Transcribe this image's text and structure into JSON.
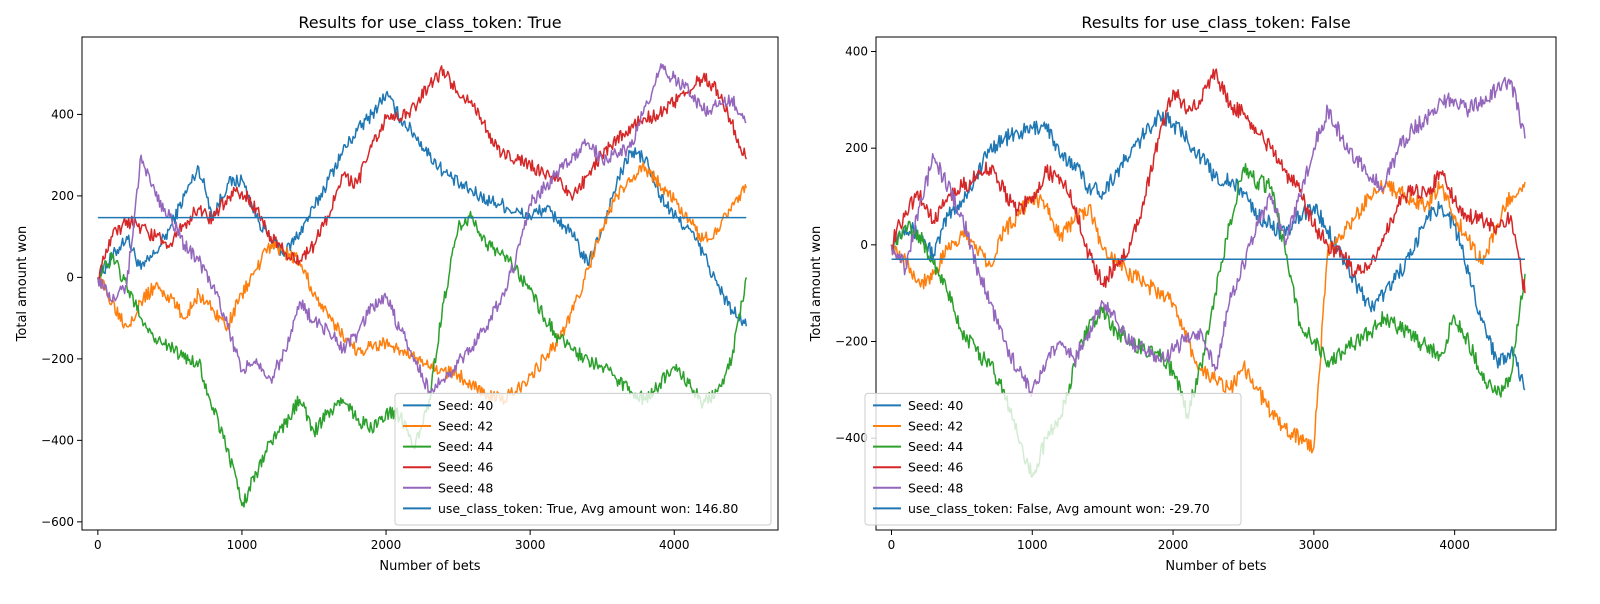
{
  "chart_data": [
    {
      "type": "line",
      "title": "Results for use_class_token: True",
      "xlabel": "Number of bets",
      "ylabel": "Total amount won",
      "xlim": [
        -110,
        4720
      ],
      "ylim": [
        -620,
        590
      ],
      "xticks": [
        0,
        1000,
        2000,
        3000,
        4000
      ],
      "yticks": [
        -600,
        -400,
        -200,
        0,
        200,
        400
      ],
      "grid": false,
      "legend_position": "lower-right",
      "series": [
        {
          "name": "Seed: 40",
          "color": "#1f77b4",
          "x": [
            0,
            100,
            200,
            300,
            400,
            500,
            600,
            700,
            800,
            900,
            1000,
            1100,
            1200,
            1300,
            1400,
            1500,
            1600,
            1700,
            1800,
            1900,
            2000,
            2100,
            2200,
            2300,
            2400,
            2500,
            2600,
            2700,
            2800,
            2900,
            3000,
            3100,
            3200,
            3300,
            3400,
            3500,
            3600,
            3700,
            3800,
            3900,
            4000,
            4100,
            4200,
            4300,
            4400,
            4500
          ],
          "y": [
            0,
            50,
            100,
            20,
            60,
            120,
            200,
            270,
            150,
            230,
            240,
            150,
            90,
            60,
            110,
            170,
            240,
            310,
            360,
            400,
            450,
            390,
            350,
            300,
            260,
            230,
            210,
            190,
            180,
            160,
            150,
            170,
            140,
            100,
            30,
            120,
            230,
            310,
            290,
            200,
            150,
            120,
            60,
            -20,
            -80,
            -120
          ]
        },
        {
          "name": "Seed: 42",
          "color": "#ff7f0e",
          "x": [
            0,
            100,
            200,
            300,
            400,
            500,
            600,
            700,
            800,
            900,
            1000,
            1100,
            1200,
            1300,
            1400,
            1500,
            1600,
            1700,
            1800,
            1900,
            2000,
            2100,
            2200,
            2300,
            2400,
            2500,
            2600,
            2700,
            2800,
            2900,
            3000,
            3100,
            3200,
            3300,
            3400,
            3500,
            3600,
            3700,
            3800,
            3900,
            4000,
            4100,
            4200,
            4300,
            4400,
            4500
          ],
          "y": [
            0,
            -60,
            -120,
            -60,
            -20,
            -50,
            -100,
            -40,
            -80,
            -120,
            -40,
            20,
            80,
            60,
            40,
            -40,
            -100,
            -140,
            -180,
            -170,
            -160,
            -180,
            -200,
            -220,
            -230,
            -240,
            -260,
            -290,
            -300,
            -280,
            -240,
            -200,
            -150,
            -80,
            20,
            120,
            200,
            240,
            270,
            230,
            190,
            140,
            90,
            120,
            180,
            220
          ]
        },
        {
          "name": "Seed: 44",
          "color": "#2ca02c",
          "x": [
            0,
            100,
            200,
            300,
            400,
            500,
            600,
            700,
            800,
            900,
            1000,
            1100,
            1200,
            1300,
            1400,
            1500,
            1600,
            1700,
            1800,
            1900,
            2000,
            2100,
            2200,
            2300,
            2400,
            2500,
            2600,
            2700,
            2800,
            2900,
            3000,
            3100,
            3200,
            3300,
            3400,
            3500,
            3600,
            3700,
            3800,
            3900,
            4000,
            4100,
            4200,
            4300,
            4400,
            4500
          ],
          "y": [
            0,
            50,
            -20,
            -100,
            -150,
            -170,
            -200,
            -210,
            -320,
            -420,
            -560,
            -480,
            -400,
            -360,
            -300,
            -380,
            -330,
            -300,
            -350,
            -370,
            -330,
            -340,
            -420,
            -300,
            -60,
            120,
            150,
            80,
            60,
            20,
            -30,
            -100,
            -150,
            -180,
            -200,
            -220,
            -250,
            -280,
            -300,
            -260,
            -220,
            -260,
            -310,
            -280,
            -200,
            0
          ]
        },
        {
          "name": "Seed: 46",
          "color": "#d62728",
          "x": [
            0,
            100,
            200,
            300,
            400,
            500,
            600,
            700,
            800,
            900,
            1000,
            1100,
            1200,
            1300,
            1400,
            1500,
            1600,
            1700,
            1800,
            1900,
            2000,
            2100,
            2200,
            2300,
            2400,
            2500,
            2600,
            2700,
            2800,
            2900,
            3000,
            3100,
            3200,
            3300,
            3400,
            3500,
            3600,
            3700,
            3800,
            3900,
            4000,
            4100,
            4200,
            4300,
            4400,
            4500
          ],
          "y": [
            0,
            100,
            140,
            120,
            100,
            80,
            130,
            170,
            140,
            200,
            210,
            170,
            100,
            60,
            40,
            80,
            150,
            250,
            230,
            320,
            390,
            390,
            420,
            470,
            510,
            450,
            420,
            360,
            300,
            290,
            280,
            250,
            240,
            200,
            250,
            300,
            340,
            370,
            390,
            400,
            430,
            460,
            490,
            460,
            380,
            290
          ]
        },
        {
          "name": "Seed: 48",
          "color": "#9467bd",
          "x": [
            0,
            100,
            200,
            300,
            400,
            500,
            600,
            700,
            800,
            900,
            1000,
            1100,
            1200,
            1300,
            1400,
            1500,
            1600,
            1700,
            1800,
            1900,
            2000,
            2100,
            2200,
            2300,
            2400,
            2500,
            2600,
            2700,
            2800,
            2900,
            3000,
            3100,
            3200,
            3300,
            3400,
            3500,
            3600,
            3700,
            3800,
            3900,
            4000,
            4100,
            4200,
            4300,
            4400,
            4500
          ],
          "y": [
            0,
            -60,
            -20,
            300,
            200,
            150,
            80,
            40,
            -20,
            -120,
            -230,
            -200,
            -250,
            -180,
            -60,
            -110,
            -130,
            -180,
            -140,
            -70,
            -50,
            -130,
            -200,
            -280,
            -250,
            -210,
            -170,
            -120,
            -50,
            40,
            180,
            220,
            260,
            300,
            330,
            290,
            300,
            320,
            420,
            510,
            490,
            460,
            410,
            420,
            440,
            380
          ]
        },
        {
          "name": "use_class_token: True, Avg amount won: 146.80",
          "color": "#1f77b4",
          "x": [
            0,
            4500
          ],
          "y": [
            146.8,
            146.8
          ]
        }
      ]
    },
    {
      "type": "line",
      "title": "Results for use_class_token: False",
      "xlabel": "Number of bets",
      "ylabel": "Total amount won",
      "xlim": [
        -110,
        4720
      ],
      "ylim": [
        -590,
        430
      ],
      "xticks": [
        0,
        1000,
        2000,
        3000,
        4000
      ],
      "yticks": [
        -400,
        -200,
        0,
        200,
        400
      ],
      "grid": false,
      "legend_position": "lower-left",
      "series": [
        {
          "name": "Seed: 40",
          "color": "#1f77b4",
          "x": [
            0,
            100,
            200,
            300,
            400,
            500,
            600,
            700,
            800,
            900,
            1000,
            1100,
            1200,
            1300,
            1400,
            1500,
            1600,
            1700,
            1800,
            1900,
            2000,
            2100,
            2200,
            2300,
            2400,
            2500,
            2600,
            2700,
            2800,
            2900,
            3000,
            3100,
            3200,
            3300,
            3400,
            3500,
            3600,
            3700,
            3800,
            3900,
            4000,
            4100,
            4200,
            4300,
            4400,
            4500
          ],
          "y": [
            0,
            40,
            20,
            -20,
            60,
            90,
            140,
            200,
            220,
            230,
            240,
            250,
            180,
            170,
            120,
            110,
            150,
            190,
            230,
            270,
            250,
            220,
            180,
            140,
            130,
            110,
            60,
            40,
            20,
            60,
            80,
            30,
            -20,
            -80,
            -130,
            -100,
            -60,
            -20,
            60,
            80,
            40,
            -60,
            -160,
            -240,
            -220,
            -300
          ]
        },
        {
          "name": "Seed: 42",
          "color": "#ff7f0e",
          "x": [
            0,
            100,
            200,
            300,
            400,
            500,
            600,
            700,
            800,
            900,
            1000,
            1100,
            1200,
            1300,
            1400,
            1500,
            1600,
            1700,
            1800,
            1900,
            2000,
            2100,
            2200,
            2300,
            2400,
            2500,
            2600,
            2700,
            2800,
            2900,
            3000,
            3100,
            3200,
            3300,
            3400,
            3500,
            3600,
            3700,
            3800,
            3900,
            4000,
            4100,
            4200,
            4300,
            4400,
            4500
          ],
          "y": [
            0,
            -30,
            -80,
            -60,
            -10,
            20,
            0,
            -40,
            30,
            60,
            100,
            80,
            20,
            50,
            80,
            -10,
            -40,
            -60,
            -80,
            -100,
            -120,
            -200,
            -260,
            -280,
            -300,
            -250,
            -300,
            -350,
            -380,
            -400,
            -420,
            -10,
            20,
            60,
            100,
            120,
            110,
            90,
            80,
            120,
            60,
            10,
            -40,
            40,
            100,
            130
          ]
        },
        {
          "name": "Seed: 44",
          "color": "#2ca02c",
          "x": [
            0,
            100,
            200,
            300,
            400,
            500,
            600,
            700,
            800,
            900,
            1000,
            1100,
            1200,
            1300,
            1400,
            1500,
            1600,
            1700,
            1800,
            1900,
            2000,
            2100,
            2200,
            2300,
            2400,
            2500,
            2600,
            2700,
            2800,
            2900,
            3000,
            3100,
            3200,
            3300,
            3400,
            3500,
            3600,
            3700,
            3800,
            3900,
            4000,
            4100,
            4200,
            4300,
            4400,
            4500
          ],
          "y": [
            0,
            40,
            20,
            -40,
            -100,
            -180,
            -220,
            -250,
            -300,
            -400,
            -480,
            -400,
            -360,
            -250,
            -170,
            -140,
            -180,
            -200,
            -220,
            -230,
            -260,
            -350,
            -250,
            -100,
            40,
            160,
            130,
            120,
            -20,
            -160,
            -200,
            -240,
            -220,
            -200,
            -180,
            -150,
            -170,
            -190,
            -210,
            -230,
            -150,
            -200,
            -280,
            -310,
            -270,
            -60
          ]
        },
        {
          "name": "Seed: 46",
          "color": "#d62728",
          "x": [
            0,
            100,
            200,
            300,
            400,
            500,
            600,
            700,
            800,
            900,
            1000,
            1100,
            1200,
            1300,
            1400,
            1500,
            1600,
            1700,
            1800,
            1900,
            2000,
            2100,
            2200,
            2300,
            2400,
            2500,
            2600,
            2700,
            2800,
            2900,
            3000,
            3100,
            3200,
            3300,
            3400,
            3500,
            3600,
            3700,
            3800,
            3900,
            4000,
            4100,
            4200,
            4300,
            4400,
            4500
          ],
          "y": [
            0,
            70,
            100,
            50,
            100,
            120,
            140,
            160,
            110,
            70,
            100,
            150,
            140,
            80,
            -20,
            -80,
            -40,
            0,
            100,
            220,
            320,
            280,
            300,
            360,
            290,
            270,
            230,
            200,
            150,
            110,
            40,
            0,
            -20,
            -60,
            -40,
            20,
            80,
            120,
            100,
            150,
            90,
            60,
            50,
            40,
            60,
            -100
          ]
        },
        {
          "name": "Seed: 48",
          "color": "#9467bd",
          "x": [
            0,
            100,
            200,
            300,
            400,
            500,
            600,
            700,
            800,
            900,
            1000,
            1100,
            1200,
            1300,
            1400,
            1500,
            1600,
            1700,
            1800,
            1900,
            2000,
            2100,
            2200,
            2300,
            2400,
            2500,
            2600,
            2700,
            2800,
            2900,
            3000,
            3100,
            3200,
            3300,
            3400,
            3500,
            3600,
            3700,
            3800,
            3900,
            4000,
            4100,
            4200,
            4300,
            4400,
            4500
          ],
          "y": [
            0,
            -50,
            80,
            180,
            120,
            60,
            -40,
            -120,
            -200,
            -260,
            -300,
            -240,
            -200,
            -240,
            -180,
            -120,
            -160,
            -200,
            -220,
            -240,
            -220,
            -190,
            -180,
            -260,
            -120,
            -40,
            40,
            100,
            0,
            100,
            200,
            280,
            220,
            180,
            140,
            120,
            200,
            240,
            260,
            300,
            300,
            280,
            300,
            320,
            340,
            220
          ]
        },
        {
          "name": "use_class_token: False, Avg amount won: -29.70",
          "color": "#1f77b4",
          "x": [
            0,
            4500
          ],
          "y": [
            -29.7,
            -29.7
          ]
        }
      ]
    }
  ]
}
